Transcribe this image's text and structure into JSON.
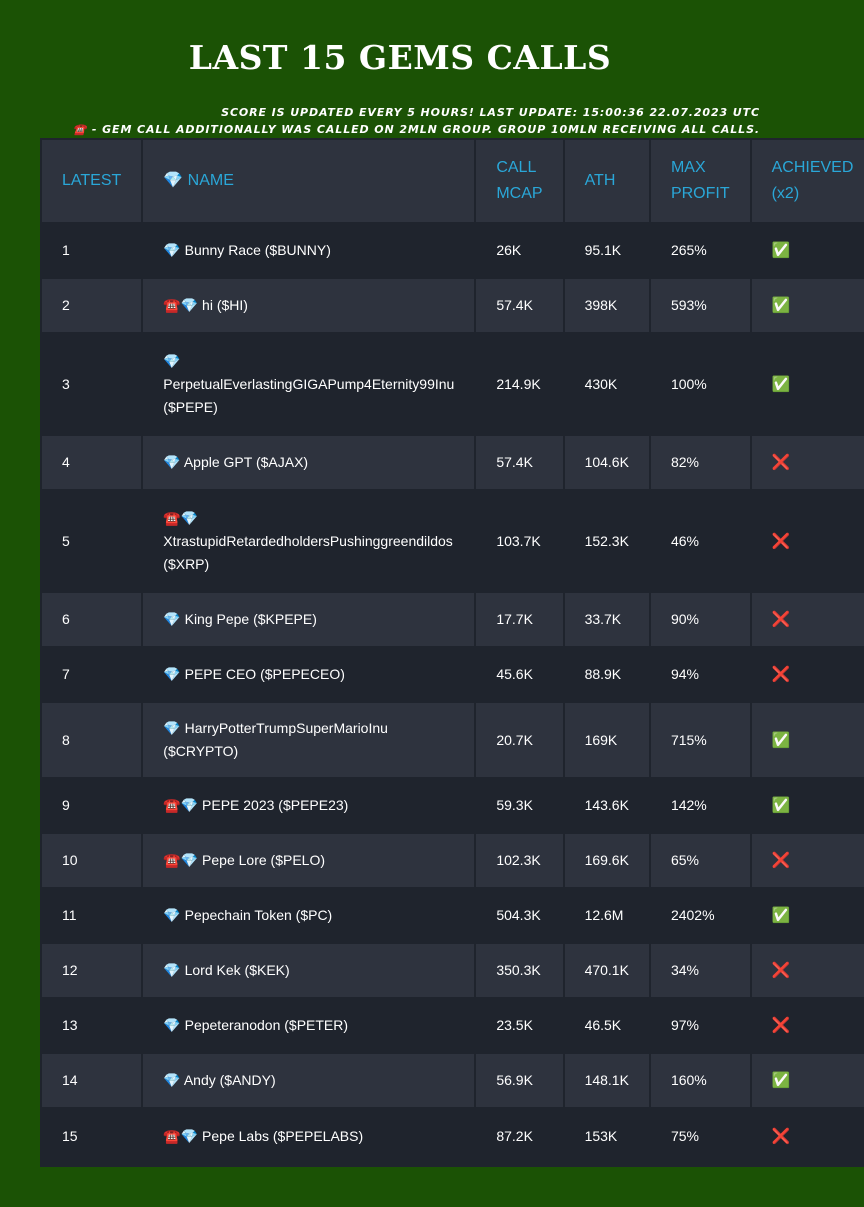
{
  "header": {
    "title": "LAST 15 GEMS CALLS",
    "subtitle_line1": "SCORE IS UPDATED EVERY 5 HOURS! LAST UPDATE: 15:00:36 22.07.2023 UTC",
    "subtitle_line2": "☎️ - GEM CALL ADDITIONALLY WAS CALLED ON 2MLN GROUP. GROUP 10MLN RECEIVING ALL CALLS."
  },
  "table": {
    "columns": [
      "LATEST",
      "💎 NAME",
      "CALL MCAP",
      "ATH",
      "MAX PROFIT",
      "ACHIEVED (x2)"
    ],
    "rows": [
      {
        "latest": "1",
        "name": "💎 Bunny Race ($BUNNY)",
        "call_mcap": "26K",
        "ath": "95.1K",
        "max_profit": "265%",
        "achieved": "✅"
      },
      {
        "latest": "2",
        "name": "☎️💎 hi ($HI)",
        "call_mcap": "57.4K",
        "ath": "398K",
        "max_profit": "593%",
        "achieved": "✅"
      },
      {
        "latest": "3",
        "name": "💎 PerpetualEverlastingGIGAPump4Eternity99Inu ($PEPE)",
        "call_mcap": "214.9K",
        "ath": "430K",
        "max_profit": "100%",
        "achieved": "✅"
      },
      {
        "latest": "4",
        "name": "💎 Apple GPT ($AJAX)",
        "call_mcap": "57.4K",
        "ath": "104.6K",
        "max_profit": "82%",
        "achieved": "❌"
      },
      {
        "latest": "5",
        "name": "☎️💎 XtrastupidRetardedholdersPushinggreendildos ($XRP)",
        "call_mcap": "103.7K",
        "ath": "152.3K",
        "max_profit": "46%",
        "achieved": "❌"
      },
      {
        "latest": "6",
        "name": "💎 King Pepe ($KPEPE)",
        "call_mcap": "17.7K",
        "ath": "33.7K",
        "max_profit": "90%",
        "achieved": "❌"
      },
      {
        "latest": "7",
        "name": "💎 PEPE CEO ($PEPECEO)",
        "call_mcap": "45.6K",
        "ath": "88.9K",
        "max_profit": "94%",
        "achieved": "❌"
      },
      {
        "latest": "8",
        "name": "💎 HarryPotterTrumpSuperMarioInu ($CRYPTO)",
        "call_mcap": "20.7K",
        "ath": "169K",
        "max_profit": "715%",
        "achieved": "✅"
      },
      {
        "latest": "9",
        "name": "☎️💎 PEPE 2023 ($PEPE23)",
        "call_mcap": "59.3K",
        "ath": "143.6K",
        "max_profit": "142%",
        "achieved": "✅"
      },
      {
        "latest": "10",
        "name": "☎️💎 Pepe Lore ($PELO)",
        "call_mcap": "102.3K",
        "ath": "169.6K",
        "max_profit": "65%",
        "achieved": "❌"
      },
      {
        "latest": "11",
        "name": "💎 Pepechain Token ($PC)",
        "call_mcap": "504.3K",
        "ath": "12.6M",
        "max_profit": "2402%",
        "achieved": "✅"
      },
      {
        "latest": "12",
        "name": "💎 Lord Kek ($KEK)",
        "call_mcap": "350.3K",
        "ath": "470.1K",
        "max_profit": "34%",
        "achieved": "❌"
      },
      {
        "latest": "13",
        "name": "💎 Pepeteranodon ($PETER)",
        "call_mcap": "23.5K",
        "ath": "46.5K",
        "max_profit": "97%",
        "achieved": "❌"
      },
      {
        "latest": "14",
        "name": "💎 Andy ($ANDY)",
        "call_mcap": "56.9K",
        "ath": "148.1K",
        "max_profit": "160%",
        "achieved": "✅"
      },
      {
        "latest": "15",
        "name": "☎️💎 Pepe Labs ($PEPELABS)",
        "call_mcap": "87.2K",
        "ath": "153K",
        "max_profit": "75%",
        "achieved": "❌"
      }
    ]
  },
  "colors": {
    "background": "#1b5205",
    "header_text": "#2aa7d8",
    "row_dark": "#1f242d",
    "row_light": "#2e333e",
    "check": "#3fb34f",
    "cross": "#e23b3b"
  }
}
